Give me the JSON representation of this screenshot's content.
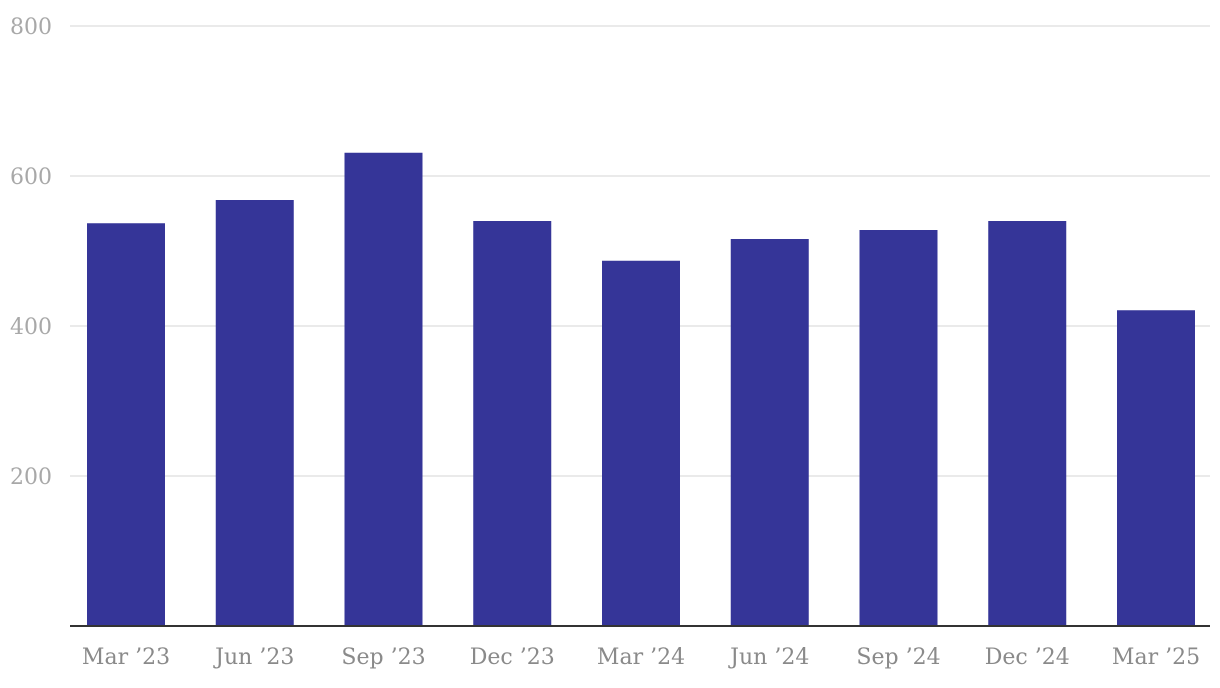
{
  "chart_data": {
    "type": "bar",
    "title": "",
    "xlabel": "",
    "ylabel": "",
    "categories": [
      "Mar ’23",
      "Jun ’23",
      "Sep ’23",
      "Dec ’23",
      "Mar ’24",
      "Jun ’24",
      "Sep ’24",
      "Dec ’24",
      "Mar ’25"
    ],
    "values": [
      537,
      568,
      631,
      540,
      487,
      516,
      528,
      540,
      421
    ],
    "ylim": [
      0,
      800
    ],
    "yticks": [
      200,
      400,
      600,
      800
    ],
    "grid": true,
    "legend": "none",
    "colors": {
      "bar": "#353598",
      "grid": "#e3e3e3",
      "baseline": "#333333",
      "tick_text": "#a8a8a8"
    }
  }
}
